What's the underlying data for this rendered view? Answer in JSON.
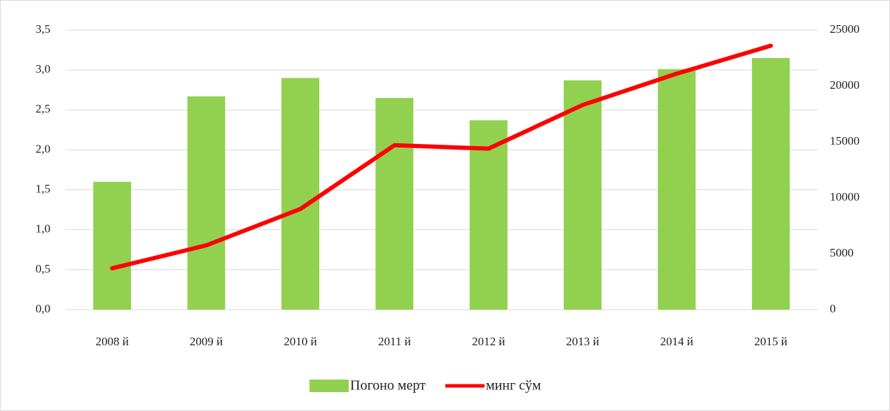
{
  "chart_data": {
    "type": "bar_line",
    "categories": [
      "2008 й",
      "2009 й",
      "2010 й",
      "2011 й",
      "2012 й",
      "2013 й",
      "2014 й",
      "2015 й"
    ],
    "series": [
      {
        "name": "Погоно мерт",
        "type": "bar",
        "color": "#92d050",
        "values": [
          1.6,
          2.67,
          2.9,
          2.65,
          2.37,
          2.87,
          3.01,
          3.15
        ]
      },
      {
        "name": "минг сўм",
        "type": "line",
        "axis": "y2",
        "color": "#ff0000",
        "values": [
          3700,
          5750,
          9000,
          14700,
          14400,
          18300,
          21100,
          23600
        ]
      }
    ],
    "ylim": [
      0,
      3.5
    ],
    "yticks": [
      {
        "value": 0,
        "label": "0,0"
      },
      {
        "value": 0.5,
        "label": "0,5"
      },
      {
        "value": 1,
        "label": "1,0"
      },
      {
        "value": 1.5,
        "label": "1,5"
      },
      {
        "value": 2,
        "label": "2,0"
      },
      {
        "value": 2.5,
        "label": "2,5"
      },
      {
        "value": 3,
        "label": "3,0"
      },
      {
        "value": 3.5,
        "label": "3,5"
      }
    ],
    "y2lim": [
      0,
      25000
    ],
    "y2ticks": [
      0,
      5000,
      10000,
      15000,
      20000,
      25000
    ],
    "grid": true,
    "legend": "bottom"
  }
}
